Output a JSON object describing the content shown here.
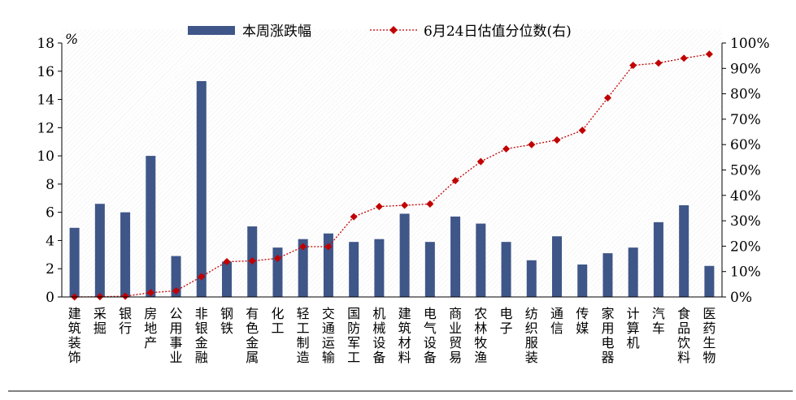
{
  "chart_data": {
    "type": "bar",
    "categories": [
      "建筑装饰",
      "采掘",
      "银行",
      "房地产",
      "公用事业",
      "非银金融",
      "钢铁",
      "有色金属",
      "化工",
      "轻工制造",
      "交通运输",
      "国防军工",
      "机械设备",
      "建筑材料",
      "电气设备",
      "商业贸易",
      "农林牧渔",
      "电子",
      "纺织服装",
      "通信",
      "传媒",
      "家用电器",
      "计算机",
      "汽车",
      "食品饮料",
      "医药生物"
    ],
    "series": [
      {
        "name": "本周涨跌幅",
        "type": "bar",
        "axis": "left",
        "color": "#3f5688",
        "values": [
          4.9,
          6.6,
          6.0,
          10.0,
          2.9,
          15.3,
          2.5,
          5.0,
          3.5,
          4.1,
          4.5,
          3.9,
          4.1,
          5.9,
          3.9,
          5.7,
          5.2,
          3.9,
          2.6,
          4.3,
          2.3,
          3.1,
          3.5,
          5.3,
          6.5,
          2.2
        ]
      },
      {
        "name": "6月24日估值分位数(右)",
        "type": "line",
        "axis": "right",
        "color": "#c00000",
        "values": [
          0.0,
          0.1,
          0.3,
          1.7,
          2.4,
          8.0,
          13.9,
          14.2,
          15.2,
          19.8,
          19.8,
          31.6,
          35.6,
          36.1,
          36.6,
          45.8,
          53.3,
          58.3,
          60.0,
          61.8,
          65.6,
          78.4,
          91.2,
          92.1,
          94.0,
          95.6
        ]
      }
    ],
    "left_axis": {
      "unit_label": "%",
      "ylim": [
        0,
        18
      ],
      "ticks": [
        "0",
        "2",
        "4",
        "6",
        "8",
        "10",
        "12",
        "14",
        "16",
        "18"
      ]
    },
    "right_axis": {
      "ylim": [
        0,
        100
      ],
      "ticks": [
        "0%",
        "10%",
        "20%",
        "30%",
        "40%",
        "50%",
        "60%",
        "70%",
        "80%",
        "90%",
        "100%"
      ]
    },
    "legend": {
      "placement": "top-center",
      "items": [
        "本周涨跌幅",
        "6月24日估值分位数(右)"
      ]
    },
    "grid": false
  }
}
